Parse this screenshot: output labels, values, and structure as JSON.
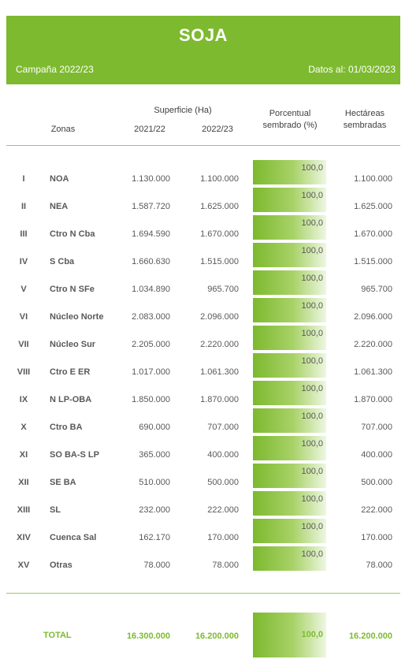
{
  "header": {
    "title": "SOJA",
    "campaign": "Campaña 2022/23",
    "date": "Datos al: 01/03/2023"
  },
  "columns": {
    "zonas": "Zonas",
    "superficie": "Superficie (Ha)",
    "year1": "2021/22",
    "year2": "2022/23",
    "porcentual_line1": "Porcentual",
    "porcentual_line2": "sembrado (%)",
    "hectareas_line1": "Hectáreas",
    "hectareas_line2": "sembradas"
  },
  "rows": [
    {
      "num": "I",
      "zone": "NOA",
      "v2122": "1.130.000",
      "v2223": "1.100.000",
      "pct": "100,0",
      "pct_value": 100,
      "ha": "1.100.000"
    },
    {
      "num": "II",
      "zone": "NEA",
      "v2122": "1.587.720",
      "v2223": "1.625.000",
      "pct": "100,0",
      "pct_value": 100,
      "ha": "1.625.000"
    },
    {
      "num": "III",
      "zone": "Ctro N Cba",
      "v2122": "1.694.590",
      "v2223": "1.670.000",
      "pct": "100,0",
      "pct_value": 100,
      "ha": "1.670.000"
    },
    {
      "num": "IV",
      "zone": "S Cba",
      "v2122": "1.660.630",
      "v2223": "1.515.000",
      "pct": "100,0",
      "pct_value": 100,
      "ha": "1.515.000"
    },
    {
      "num": "V",
      "zone": "Ctro N SFe",
      "v2122": "1.034.890",
      "v2223": "965.700",
      "pct": "100,0",
      "pct_value": 100,
      "ha": "965.700"
    },
    {
      "num": "VI",
      "zone": "Núcleo Norte",
      "v2122": "2.083.000",
      "v2223": "2.096.000",
      "pct": "100,0",
      "pct_value": 100,
      "ha": "2.096.000"
    },
    {
      "num": "VII",
      "zone": "Núcleo Sur",
      "v2122": "2.205.000",
      "v2223": "2.220.000",
      "pct": "100,0",
      "pct_value": 100,
      "ha": "2.220.000"
    },
    {
      "num": "VIII",
      "zone": "Ctro E ER",
      "v2122": "1.017.000",
      "v2223": "1.061.300",
      "pct": "100,0",
      "pct_value": 100,
      "ha": "1.061.300"
    },
    {
      "num": "IX",
      "zone": "N LP-OBA",
      "v2122": "1.850.000",
      "v2223": "1.870.000",
      "pct": "100,0",
      "pct_value": 100,
      "ha": "1.870.000"
    },
    {
      "num": "X",
      "zone": "Ctro BA",
      "v2122": "690.000",
      "v2223": "707.000",
      "pct": "100,0",
      "pct_value": 100,
      "ha": "707.000"
    },
    {
      "num": "XI",
      "zone": "SO BA-S LP",
      "v2122": "365.000",
      "v2223": "400.000",
      "pct": "100,0",
      "pct_value": 100,
      "ha": "400.000"
    },
    {
      "num": "XII",
      "zone": "SE BA",
      "v2122": "510.000",
      "v2223": "500.000",
      "pct": "100,0",
      "pct_value": 100,
      "ha": "500.000"
    },
    {
      "num": "XIII",
      "zone": "SL",
      "v2122": "232.000",
      "v2223": "222.000",
      "pct": "100,0",
      "pct_value": 100,
      "ha": "222.000"
    },
    {
      "num": "XIV",
      "zone": "Cuenca Sal",
      "v2122": "162.170",
      "v2223": "170.000",
      "pct": "100,0",
      "pct_value": 100,
      "ha": "170.000"
    },
    {
      "num": "XV",
      "zone": "Otras",
      "v2122": "78.000",
      "v2223": "78.000",
      "pct": "100,0",
      "pct_value": 100,
      "ha": "78.000"
    }
  ],
  "total": {
    "label": "TOTAL",
    "v2122": "16.300.000",
    "v2223": "16.200.000",
    "pct": "100,0",
    "pct_value": 100,
    "ha": "16.200.000"
  },
  "colors": {
    "accent": "#7dba2f",
    "text": "#595959"
  }
}
